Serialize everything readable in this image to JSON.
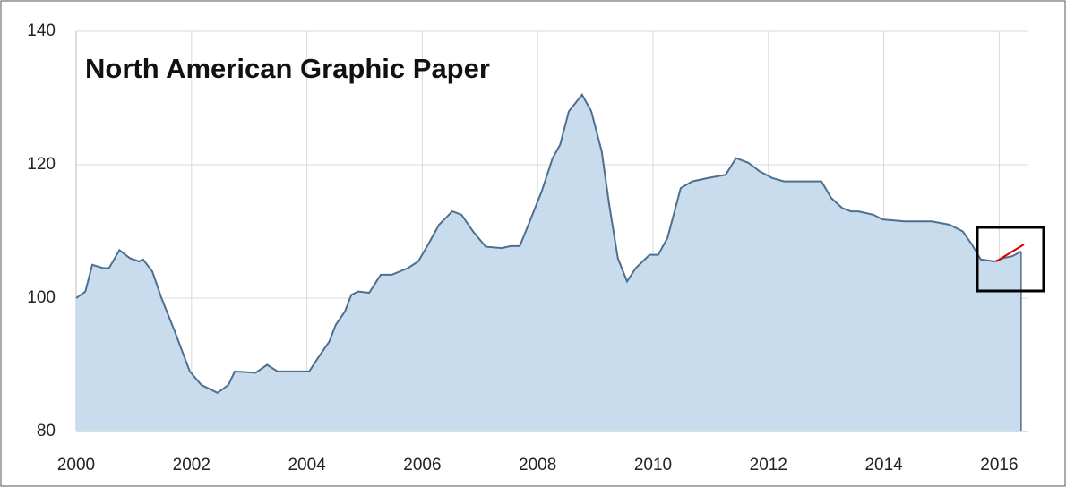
{
  "chart_data": {
    "type": "area",
    "title": "North American Graphic Paper",
    "x": [
      2000.0,
      2000.16,
      2000.28,
      2000.47,
      2000.57,
      2000.75,
      2000.93,
      2001.09,
      2001.16,
      2001.32,
      2001.48,
      2001.71,
      2001.97,
      2002.17,
      2002.45,
      2002.64,
      2002.75,
      2003.11,
      2003.31,
      2003.49,
      2004.04,
      2004.19,
      2004.39,
      2004.5,
      2004.66,
      2004.77,
      2004.89,
      2005.08,
      2005.28,
      2005.47,
      2005.75,
      2005.93,
      2006.1,
      2006.29,
      2006.52,
      2006.68,
      2006.88,
      2007.1,
      2007.38,
      2007.53,
      2007.69,
      2007.84,
      2008.07,
      2008.26,
      2008.39,
      2008.54,
      2008.77,
      2008.93,
      2009.11,
      2009.24,
      2009.39,
      2009.55,
      2009.7,
      2009.94,
      2010.09,
      2010.25,
      2010.48,
      2010.68,
      2010.95,
      2011.26,
      2011.44,
      2011.65,
      2011.85,
      2012.07,
      2012.27,
      2012.66,
      2012.92,
      2013.09,
      2013.28,
      2013.43,
      2013.56,
      2013.82,
      2013.98,
      2014.36,
      2014.83,
      2015.14,
      2015.37,
      2015.53,
      2015.68,
      2015.92,
      2016.07,
      2016.23,
      2016.38
    ],
    "values": [
      100,
      101,
      105,
      104.5,
      104.5,
      107.2,
      106,
      105.5,
      105.8,
      104,
      100,
      95,
      89,
      87,
      85.8,
      87,
      89,
      88.8,
      90,
      89,
      89,
      91,
      93.5,
      96,
      98,
      100.5,
      101,
      100.8,
      103.5,
      103.5,
      104.5,
      105.5,
      108,
      111,
      113,
      112.5,
      110,
      107.7,
      107.5,
      107.8,
      107.8,
      111,
      116,
      121,
      123,
      128,
      130.5,
      128,
      122,
      114,
      106,
      102.5,
      104.5,
      106.5,
      106.5,
      109,
      116.5,
      117.5,
      118,
      118.5,
      121,
      120.3,
      119,
      118,
      117.5,
      117.5,
      117.5,
      115,
      113.5,
      113,
      113,
      112.5,
      111.8,
      111.5,
      111.5,
      111,
      110,
      108,
      105.8,
      105.5,
      106,
      106.3,
      107
    ],
    "color": "#4f6f8f",
    "fill": "#c9dcee",
    "xlim": [
      2000,
      2016.5
    ],
    "xticks": [
      2000,
      2002,
      2004,
      2006,
      2008,
      2010,
      2012,
      2014,
      2016
    ],
    "ylim": [
      80,
      140
    ],
    "yticks": [
      80,
      100,
      120,
      140
    ],
    "grid": true
  }
}
